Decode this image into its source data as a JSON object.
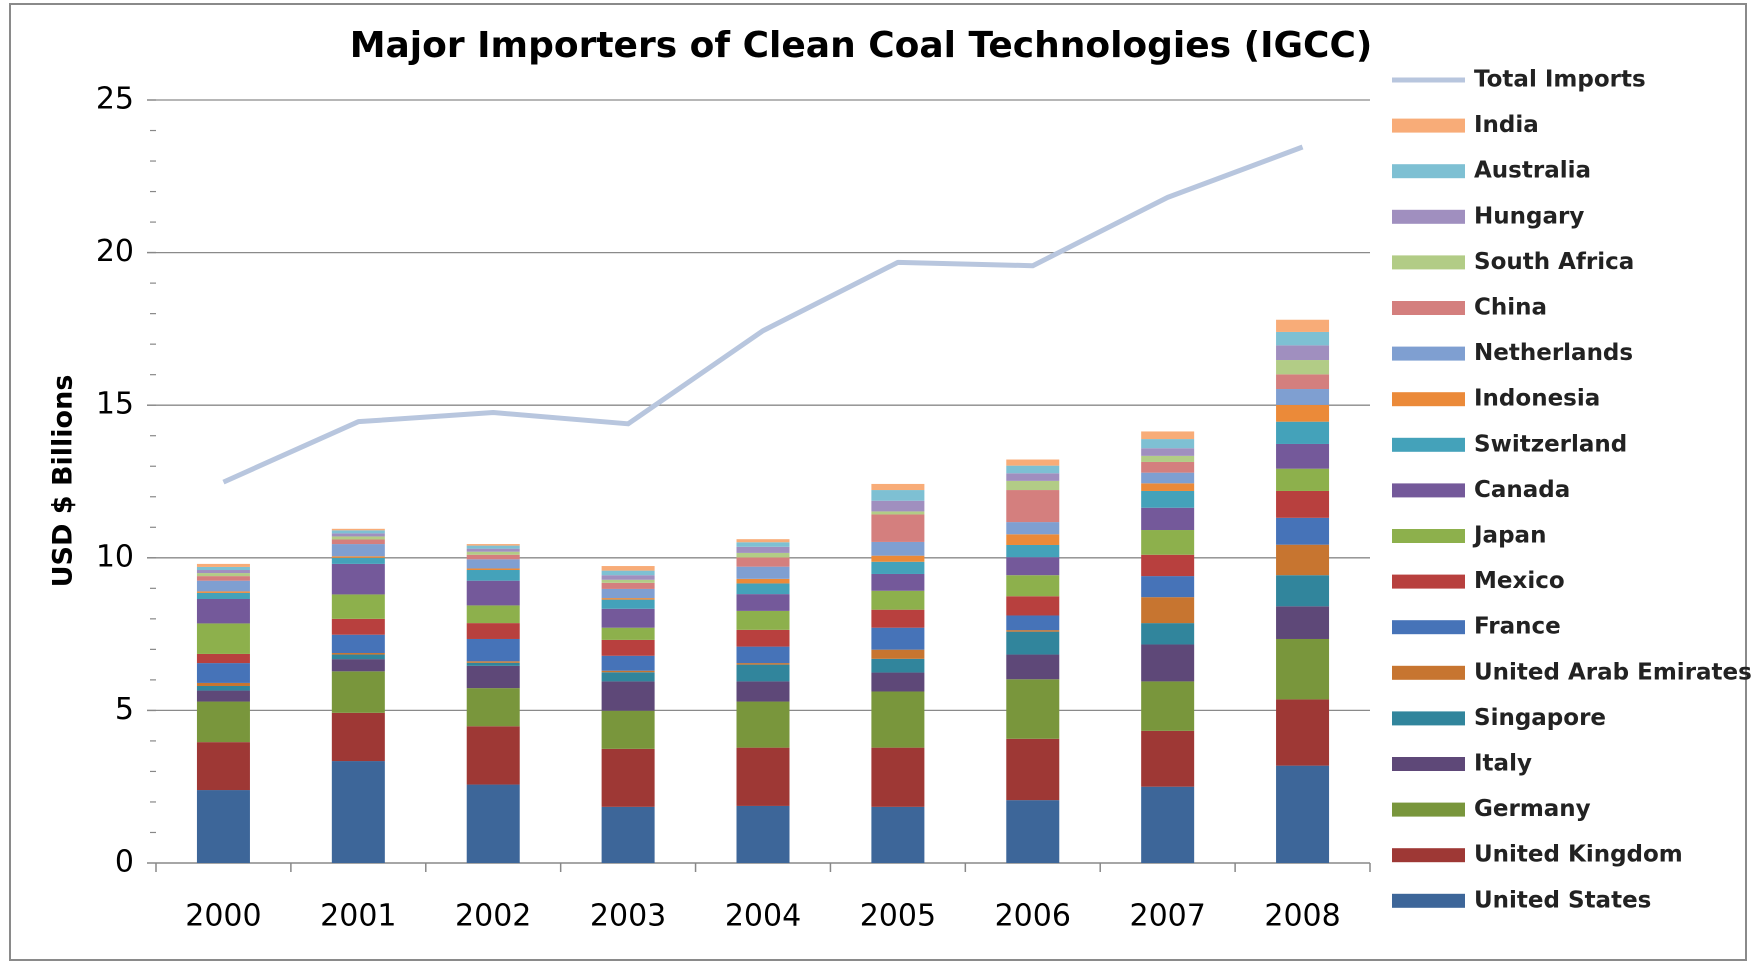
{
  "chart_data": {
    "type": "bar",
    "stacked": true,
    "title": "Major Importers of Clean Coal Technologies (IGCC)",
    "y_label": "USD $ Billions",
    "categories": [
      "2000",
      "2001",
      "2002",
      "2003",
      "2004",
      "2005",
      "2006",
      "2007",
      "2008"
    ],
    "ylim": [
      0,
      25
    ],
    "yticks": [
      0,
      5,
      10,
      15,
      20,
      25
    ],
    "y_minor_ticks": [
      1,
      2,
      3,
      4,
      6,
      7,
      8,
      9,
      11,
      12,
      13,
      14,
      16,
      17,
      18,
      19,
      21,
      22,
      23,
      24
    ],
    "grid": true,
    "legend": "right",
    "series": [
      {
        "name": "United States",
        "color": "#3d6699",
        "values": [
          2.39,
          3.34,
          2.57,
          1.84,
          1.87,
          1.84,
          2.06,
          2.5,
          3.19
        ]
      },
      {
        "name": "United Kingdom",
        "color": "#9e3835",
        "values": [
          1.57,
          1.58,
          1.91,
          1.9,
          1.91,
          1.94,
          2.01,
          1.83,
          2.17
        ]
      },
      {
        "name": "Germany",
        "color": "#79963c",
        "values": [
          1.33,
          1.36,
          1.25,
          1.25,
          1.51,
          1.84,
          1.95,
          1.62,
          1.98
        ]
      },
      {
        "name": "Italy",
        "color": "#5e4878",
        "values": [
          0.36,
          0.4,
          0.73,
          0.96,
          0.66,
          0.62,
          0.81,
          1.21,
          1.07
        ]
      },
      {
        "name": "Singapore",
        "color": "#31859c",
        "values": [
          0.15,
          0.15,
          0.1,
          0.3,
          0.55,
          0.45,
          0.75,
          0.7,
          1.02
        ]
      },
      {
        "name": "United Arab Emirates",
        "color": "#c77530",
        "values": [
          0.1,
          0.05,
          0.05,
          0.05,
          0.05,
          0.3,
          0.05,
          0.85,
          1.0
        ]
      },
      {
        "name": "France",
        "color": "#4673b8",
        "values": [
          0.65,
          0.6,
          0.73,
          0.49,
          0.54,
          0.72,
          0.48,
          0.69,
          0.88
        ]
      },
      {
        "name": "Mexico",
        "color": "#b8403e",
        "values": [
          0.3,
          0.52,
          0.52,
          0.52,
          0.55,
          0.59,
          0.63,
          0.7,
          0.88
        ]
      },
      {
        "name": "Japan",
        "color": "#8db04c",
        "values": [
          1.0,
          0.8,
          0.58,
          0.4,
          0.62,
          0.62,
          0.69,
          0.81,
          0.73
        ]
      },
      {
        "name": "Canada",
        "color": "#74599a",
        "values": [
          0.8,
          1.0,
          0.81,
          0.62,
          0.55,
          0.55,
          0.59,
          0.73,
          0.81
        ]
      },
      {
        "name": "Switzerland",
        "color": "#44a2ba",
        "values": [
          0.2,
          0.2,
          0.35,
          0.3,
          0.35,
          0.4,
          0.4,
          0.55,
          0.73
        ]
      },
      {
        "name": "Indonesia",
        "color": "#eb8a39",
        "values": [
          0.05,
          0.05,
          0.05,
          0.05,
          0.15,
          0.2,
          0.35,
          0.25,
          0.55
        ]
      },
      {
        "name": "Netherlands",
        "color": "#7f9fd1",
        "values": [
          0.35,
          0.4,
          0.3,
          0.3,
          0.4,
          0.45,
          0.4,
          0.35,
          0.52
        ]
      },
      {
        "name": "China",
        "color": "#d47f7e",
        "values": [
          0.15,
          0.15,
          0.15,
          0.2,
          0.3,
          0.9,
          1.05,
          0.35,
          0.48
        ]
      },
      {
        "name": "South Africa",
        "color": "#b2cc86",
        "values": [
          0.1,
          0.1,
          0.1,
          0.1,
          0.15,
          0.1,
          0.3,
          0.2,
          0.47
        ]
      },
      {
        "name": "Hungary",
        "color": "#a08fbf",
        "values": [
          0.1,
          0.1,
          0.1,
          0.15,
          0.2,
          0.35,
          0.25,
          0.25,
          0.48
        ]
      },
      {
        "name": "Australia",
        "color": "#7ec0d3",
        "values": [
          0.1,
          0.1,
          0.1,
          0.15,
          0.15,
          0.35,
          0.25,
          0.3,
          0.44
        ]
      },
      {
        "name": "India",
        "color": "#f8ac78",
        "values": [
          0.1,
          0.05,
          0.05,
          0.15,
          0.1,
          0.2,
          0.2,
          0.25,
          0.4
        ]
      },
      {
        "name": "Total Imports",
        "color": "#b8c6de",
        "type": "line",
        "values": [
          12.48,
          14.46,
          14.76,
          14.39,
          17.44,
          19.68,
          19.57,
          21.81,
          23.46
        ]
      }
    ]
  }
}
